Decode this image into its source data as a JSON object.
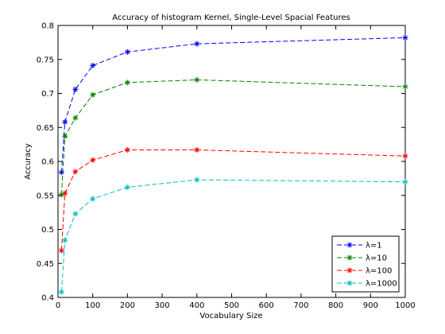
{
  "chart_data": {
    "type": "line",
    "title": "Accuracy of histogram Kernel, Single-Level Spacial Features",
    "xlabel": "Vocabulary Size",
    "ylabel": "Accuracy",
    "xlim": [
      0,
      1000
    ],
    "ylim": [
      0.4,
      0.8
    ],
    "xticks": [
      0,
      100,
      200,
      300,
      400,
      500,
      600,
      700,
      800,
      900,
      1000
    ],
    "yticks": [
      0.4,
      0.45,
      0.5,
      0.55,
      0.6,
      0.65,
      0.7,
      0.75,
      0.8
    ],
    "ytick_labels": [
      "0.4",
      "0.45",
      "0.5",
      "0.55",
      "0.6",
      "0.65",
      "0.7",
      "0.75",
      "0.8"
    ],
    "grid": false,
    "legend_position": "bottom-right",
    "x": [
      10,
      20,
      50,
      100,
      200,
      400,
      1000
    ],
    "series": [
      {
        "name": "λ=1",
        "color": "#0000ff",
        "values": [
          0.584,
          0.658,
          0.706,
          0.741,
          0.761,
          0.773,
          0.782
        ]
      },
      {
        "name": "λ=10",
        "color": "#008000",
        "values": [
          0.551,
          0.637,
          0.664,
          0.698,
          0.716,
          0.72,
          0.71
        ]
      },
      {
        "name": "λ=100",
        "color": "#ff0000",
        "values": [
          0.469,
          0.553,
          0.585,
          0.602,
          0.617,
          0.617,
          0.608
        ]
      },
      {
        "name": "λ=1000",
        "color": "#00bfbf",
        "values": [
          0.408,
          0.484,
          0.523,
          0.545,
          0.562,
          0.573,
          0.57
        ]
      }
    ]
  }
}
